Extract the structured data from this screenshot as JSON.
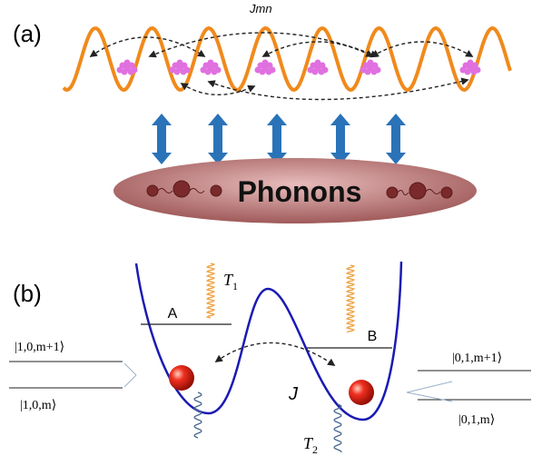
{
  "panel_a": {
    "label": "(a)",
    "coupling": "Jmn",
    "bath": "Phonons"
  },
  "panel_b": {
    "label": "(b)",
    "left_well": "A",
    "right_well": "B",
    "tunneling": "J",
    "t1": {
      "symbol": "T",
      "sub": "1"
    },
    "t2": {
      "symbol": "T",
      "sub": "2"
    },
    "left_levels": [
      "|1,0,m+1⟩",
      "|1,0,m⟩"
    ],
    "right_levels": [
      "|0,1,m+1⟩",
      "|0,1,m⟩"
    ]
  }
}
